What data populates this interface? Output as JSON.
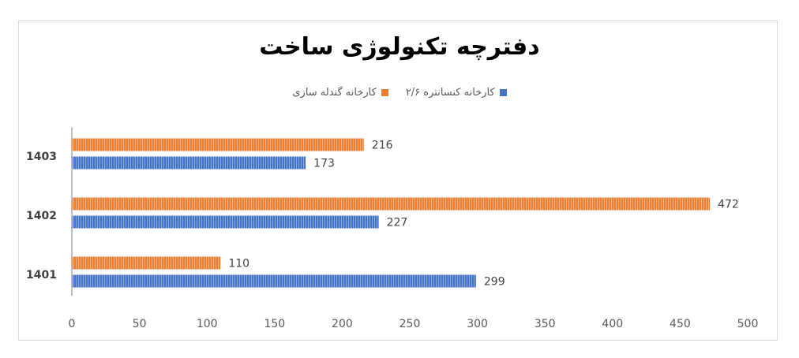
{
  "chart_data": {
    "type": "bar",
    "orientation": "horizontal",
    "title": "دفترچه تکنولوژی ساخت",
    "categories": [
      "1401",
      "1402",
      "1403"
    ],
    "series": [
      {
        "name": "کارخانه کنسانتره ۲/۶",
        "color": "#4472c4",
        "values": [
          299,
          227,
          173
        ]
      },
      {
        "name": "کارخانه گندله سازی",
        "color": "#ed7d31",
        "values": [
          110,
          472,
          216
        ]
      }
    ],
    "xlim": [
      0,
      500
    ],
    "xticks": [
      "0",
      "50",
      "100",
      "150",
      "200",
      "250",
      "300",
      "350",
      "400",
      "450",
      "500"
    ],
    "xtick_values": [
      0,
      50,
      100,
      150,
      200,
      250,
      300,
      350,
      400,
      450,
      500
    ],
    "grid": false,
    "legend_position": "top"
  }
}
